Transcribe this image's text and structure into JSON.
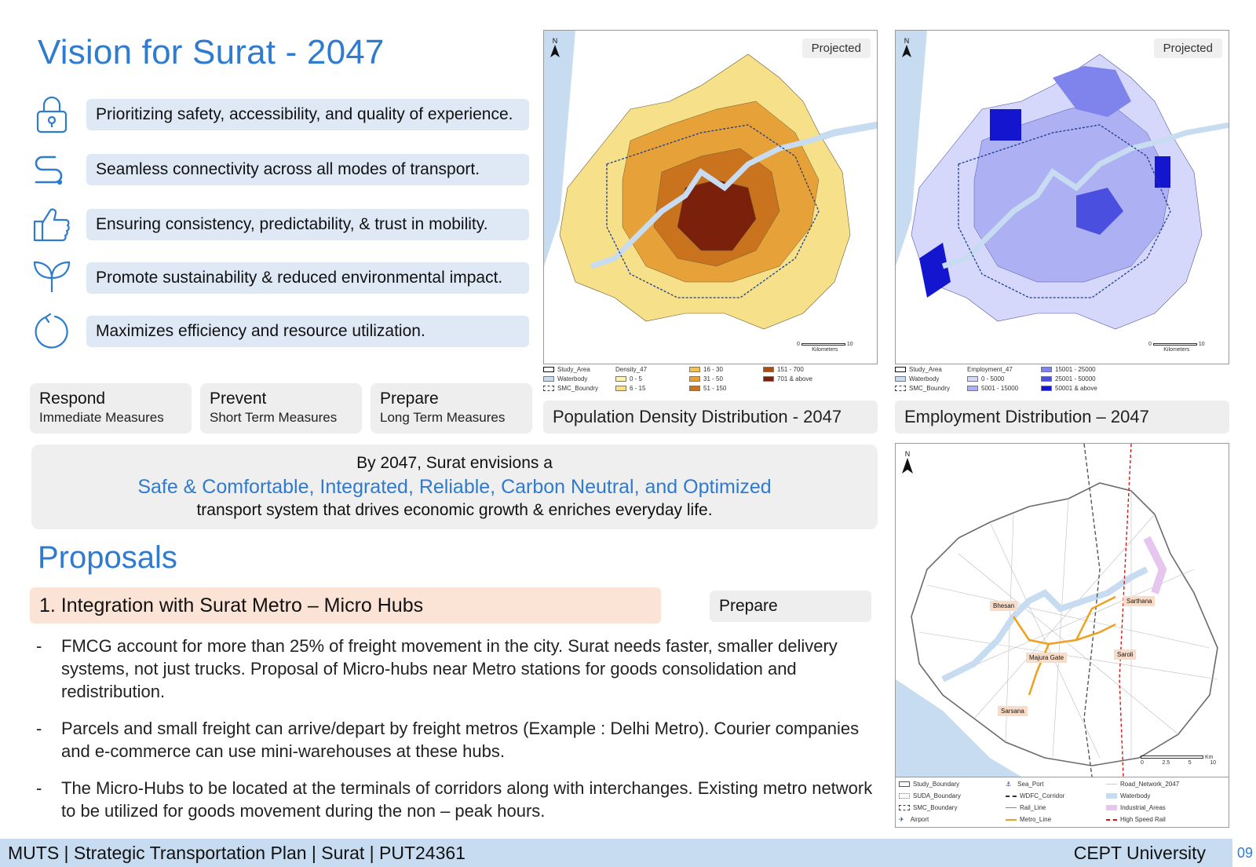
{
  "title": "Vision for Surat - 2047",
  "vision_items": [
    {
      "icon": "lock-icon",
      "text": "Prioritizing safety, accessibility, and quality of experience."
    },
    {
      "icon": "route-icon",
      "text": "Seamless connectivity across all modes of transport."
    },
    {
      "icon": "thumbs-up-icon",
      "text": "Ensuring consistency, predictability, & trust in mobility."
    },
    {
      "icon": "leaf-icon",
      "text": "Promote sustainability & reduced environmental impact."
    },
    {
      "icon": "refresh-icon",
      "text": "Maximizes efficiency and resource utilization."
    }
  ],
  "horizons": [
    {
      "title": "Respond",
      "subtitle": "Immediate Measures"
    },
    {
      "title": "Prevent",
      "subtitle": "Short Term Measures"
    },
    {
      "title": "Prepare",
      "subtitle": "Long Term Measures"
    }
  ],
  "statement": {
    "line1": "By 2047, Surat envisions a",
    "line2": "Safe & Comfortable, Integrated, Reliable, Carbon Neutral, and Optimized",
    "line3": "transport system that drives economic growth & enriches everyday life."
  },
  "proposals_heading": "Proposals",
  "proposal": {
    "title": "1. Integration with Surat Metro – Micro Hubs",
    "tag": "Prepare",
    "bullets": [
      "FMCG account for more than 25% of freight movement in the city. Surat needs faster, smaller delivery systems, not just trucks. Proposal of Micro-hubs near Metro stations for goods consolidation and redistribution.",
      "Parcels and small freight can arrive/depart by freight metros (Example : Delhi Metro). Courier companies and e-commerce can use mini-warehouses at these hubs.",
      "The Micro-Hubs to be located at the terminals of corridors along with interchanges. Existing metro network to be utilized for goods movement during the non – peak hours."
    ]
  },
  "maps": {
    "density": {
      "badge": "Projected",
      "caption": "Population Density Distribution - 2047",
      "north": "N",
      "scale": "0",
      "scale_end": "10",
      "scale_unit": "Kilometers",
      "legend_left": [
        "Study_Area",
        "Waterbody",
        "SMC_Boundry"
      ],
      "legend_title": "Density_47",
      "classes": [
        {
          "label": "0 - 5",
          "color": "#fbf3b0"
        },
        {
          "label": "6 - 15",
          "color": "#f7e08a"
        },
        {
          "label": "16 - 30",
          "color": "#f2c25a"
        },
        {
          "label": "31 - 50",
          "color": "#e6a238"
        },
        {
          "label": "51 - 150",
          "color": "#c9731f"
        },
        {
          "label": "151 - 700",
          "color": "#a94e14"
        },
        {
          "label": "701 & above",
          "color": "#7a200b"
        }
      ]
    },
    "employment": {
      "badge": "Projected",
      "caption": "Employment Distribution – 2047",
      "north": "N",
      "scale": "0",
      "scale_end": "10",
      "scale_unit": "Kilometers",
      "legend_left": [
        "Study_Area",
        "Waterbody",
        "SMC_Boundry"
      ],
      "legend_title": "Employment_47",
      "classes": [
        {
          "label": "0 - 5000",
          "color": "#d6d8fb"
        },
        {
          "label": "5001 - 15000",
          "color": "#aeb0f4"
        },
        {
          "label": "15001 - 25000",
          "color": "#7f83ec"
        },
        {
          "label": "25001 - 50000",
          "color": "#4a4fe0"
        },
        {
          "label": "50001 & above",
          "color": "#1416cf"
        }
      ]
    },
    "network": {
      "north": "N",
      "places": [
        "Bhesan",
        "Sarthana",
        "Majura Gate",
        "Saroli",
        "Sarsana"
      ],
      "scale_labels": [
        "0",
        "2.5",
        "5",
        "10"
      ],
      "scale_unit": "Km",
      "legend": [
        "Study_Boundary",
        "SUDA_Boundary",
        "SMC_Boundary",
        "Airport",
        "Sea_Port",
        "WDFC_Corridor",
        "Rail_Line",
        "Metro_Line",
        "Road_Network_2047",
        "Waterbody",
        "Industrial_Areas",
        "High Speed Rail"
      ]
    }
  },
  "footer": {
    "left": "MUTS  |  Strategic Transportation Plan  |  Surat  |  PUT24361",
    "right": "CEPT University",
    "page": "09"
  },
  "colors": {
    "accent_blue": "#2e7bcf",
    "pill_blue": "#dfe9f6",
    "proposal_peach": "#fbe3d6",
    "footer_blue": "#c7dcf1"
  }
}
